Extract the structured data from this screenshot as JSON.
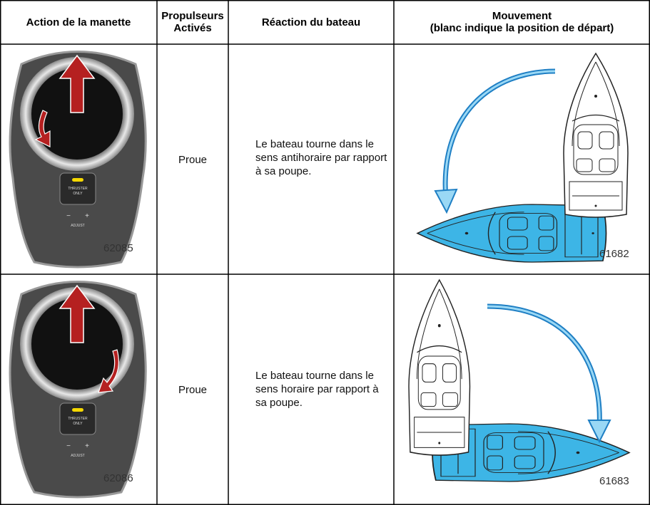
{
  "table": {
    "header": [
      [
        "Action de la manette"
      ],
      [
        "Propulseurs",
        "Activés"
      ],
      [
        "Réaction du bateau"
      ],
      [
        "Mouvement",
        "(blanc indique la position de départ)"
      ]
    ],
    "rows": [
      {
        "thrusters": "Proue",
        "reaction": "Le bateau tourne dans le sens antihoraire par rapport à sa poupe.",
        "joystick_figure": "62085",
        "movement_figure": "61682",
        "joystick_labels": [
          "THRUSTER",
          "ONLY",
          "−",
          "+",
          "ADJUST"
        ]
      },
      {
        "thrusters": "Proue",
        "reaction": "Le bateau tourne dans le sens horaire par rapport à sa poupe.",
        "joystick_figure": "62086",
        "movement_figure": "61683",
        "joystick_labels": [
          "THRUSTER",
          "ONLY",
          "−",
          "+",
          "ADJUST"
        ]
      }
    ]
  }
}
